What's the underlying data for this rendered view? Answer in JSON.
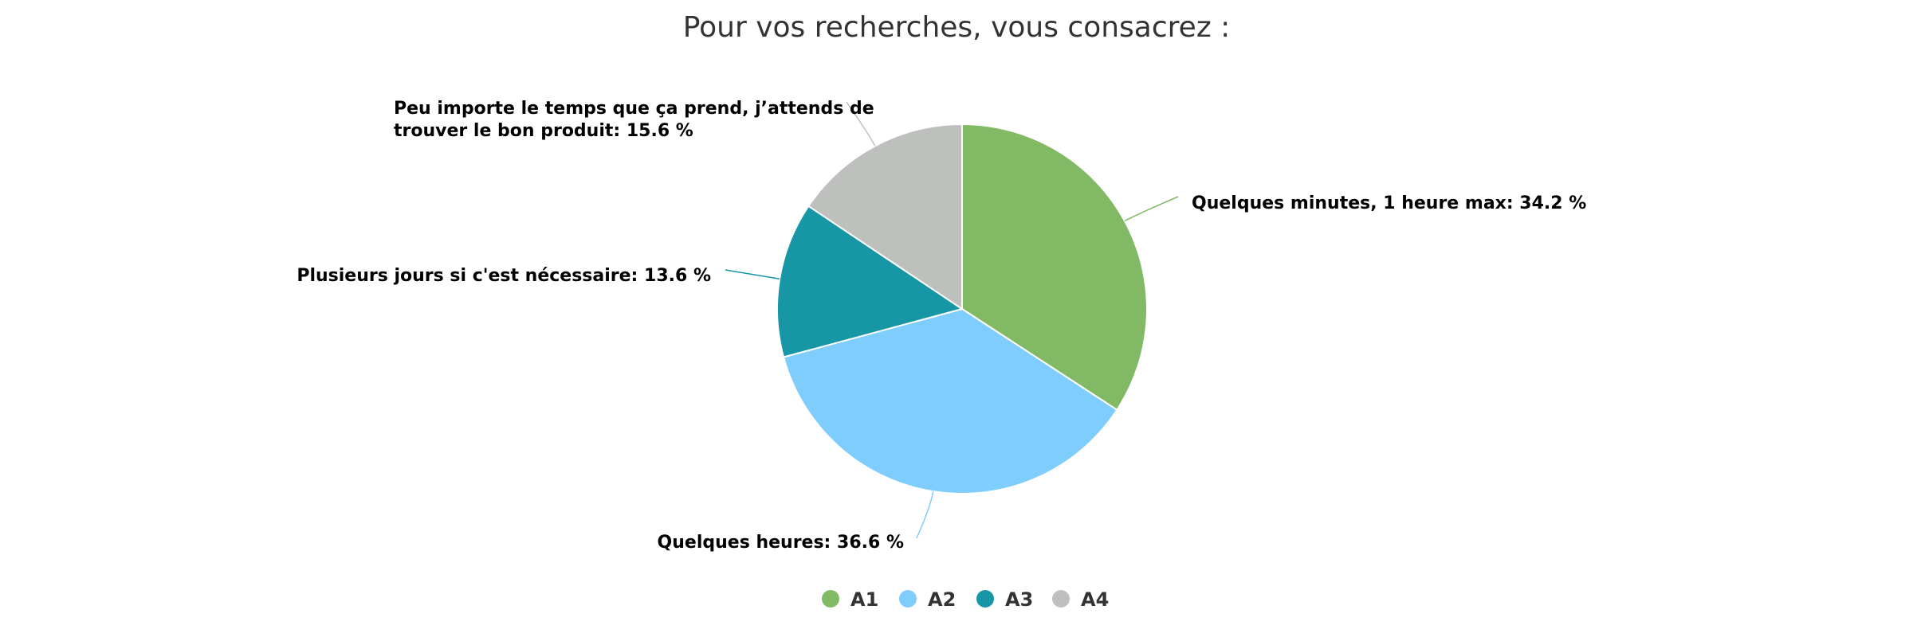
{
  "chart_data": {
    "type": "pie",
    "title": "Pour vos recherches, vous consacrez :",
    "unit": "%",
    "slices": [
      {
        "legend": "A1",
        "label_lines": [
          "Quelques minutes, 1 heure max: 34.2 %"
        ],
        "value": 34.2,
        "color": "#82b964"
      },
      {
        "legend": "A2",
        "label_lines": [
          "Quelques heures: 36.6 %"
        ],
        "value": 36.6,
        "color": "#7fcdfd"
      },
      {
        "legend": "A3",
        "label_lines": [
          "Plusieurs jours si c'est nécessaire: 13.6 %"
        ],
        "value": 13.6,
        "color": "#1797a6"
      },
      {
        "legend": "A4",
        "label_lines": [
          "Peu importe le temps que ça prend, j’attends de",
          "trouver le bon produit: 15.6 %"
        ],
        "value": 15.6,
        "color": "#bdc0bd"
      }
    ],
    "legend_position": "bottom-center"
  }
}
